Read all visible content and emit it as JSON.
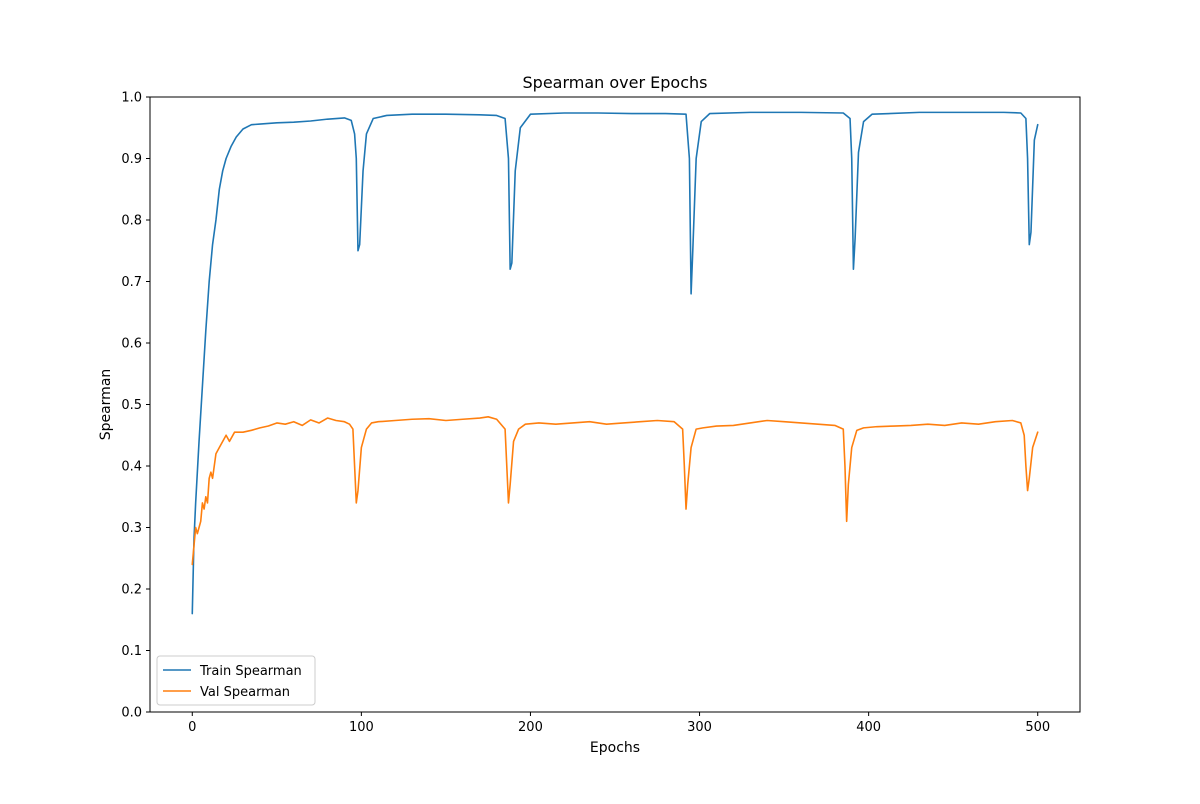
{
  "chart_data": {
    "type": "line",
    "title": "Spearman over Epochs",
    "xlabel": "Epochs",
    "ylabel": "Spearman",
    "xlim": [
      -25,
      525
    ],
    "ylim": [
      0.0,
      1.0
    ],
    "xticks": [
      0,
      100,
      200,
      300,
      400,
      500
    ],
    "yticks": [
      0.0,
      0.1,
      0.2,
      0.3,
      0.4,
      0.5,
      0.6,
      0.7,
      0.8,
      0.9,
      1.0
    ],
    "xtick_labels": [
      "0",
      "100",
      "200",
      "300",
      "400",
      "500"
    ],
    "ytick_labels": [
      "0.0",
      "0.1",
      "0.2",
      "0.3",
      "0.4",
      "0.5",
      "0.6",
      "0.7",
      "0.8",
      "0.9",
      "1.0"
    ],
    "grid": false,
    "legend_position": "lower-left",
    "series": [
      {
        "name": "Train Spearman",
        "color": "#1f77b4",
        "points": [
          [
            0,
            0.16
          ],
          [
            1,
            0.28
          ],
          [
            2,
            0.34
          ],
          [
            4,
            0.44
          ],
          [
            6,
            0.53
          ],
          [
            8,
            0.62
          ],
          [
            10,
            0.7
          ],
          [
            12,
            0.76
          ],
          [
            14,
            0.8
          ],
          [
            16,
            0.85
          ],
          [
            18,
            0.88
          ],
          [
            20,
            0.9
          ],
          [
            23,
            0.92
          ],
          [
            26,
            0.935
          ],
          [
            30,
            0.948
          ],
          [
            35,
            0.955
          ],
          [
            40,
            0.956
          ],
          [
            50,
            0.958
          ],
          [
            60,
            0.959
          ],
          [
            70,
            0.961
          ],
          [
            80,
            0.964
          ],
          [
            90,
            0.966
          ],
          [
            94,
            0.962
          ],
          [
            96,
            0.94
          ],
          [
            97,
            0.9
          ],
          [
            98,
            0.75
          ],
          [
            99,
            0.76
          ],
          [
            101,
            0.88
          ],
          [
            103,
            0.94
          ],
          [
            107,
            0.965
          ],
          [
            115,
            0.97
          ],
          [
            130,
            0.972
          ],
          [
            150,
            0.972
          ],
          [
            170,
            0.971
          ],
          [
            180,
            0.97
          ],
          [
            185,
            0.965
          ],
          [
            187,
            0.9
          ],
          [
            188,
            0.72
          ],
          [
            189,
            0.73
          ],
          [
            191,
            0.88
          ],
          [
            194,
            0.95
          ],
          [
            200,
            0.972
          ],
          [
            220,
            0.974
          ],
          [
            240,
            0.974
          ],
          [
            260,
            0.973
          ],
          [
            280,
            0.973
          ],
          [
            292,
            0.972
          ],
          [
            294,
            0.9
          ],
          [
            295,
            0.68
          ],
          [
            296,
            0.75
          ],
          [
            298,
            0.9
          ],
          [
            301,
            0.96
          ],
          [
            306,
            0.973
          ],
          [
            330,
            0.975
          ],
          [
            360,
            0.975
          ],
          [
            385,
            0.974
          ],
          [
            389,
            0.965
          ],
          [
            390,
            0.9
          ],
          [
            391,
            0.72
          ],
          [
            392,
            0.77
          ],
          [
            394,
            0.91
          ],
          [
            397,
            0.96
          ],
          [
            402,
            0.972
          ],
          [
            430,
            0.975
          ],
          [
            460,
            0.975
          ],
          [
            480,
            0.975
          ],
          [
            490,
            0.974
          ],
          [
            493,
            0.965
          ],
          [
            494,
            0.9
          ],
          [
            495,
            0.76
          ],
          [
            496,
            0.78
          ],
          [
            498,
            0.93
          ],
          [
            500,
            0.955
          ]
        ]
      },
      {
        "name": "Val Spearman",
        "color": "#ff7f0e",
        "points": [
          [
            0,
            0.24
          ],
          [
            1,
            0.27
          ],
          [
            2,
            0.3
          ],
          [
            3,
            0.29
          ],
          [
            4,
            0.3
          ],
          [
            5,
            0.31
          ],
          [
            6,
            0.34
          ],
          [
            7,
            0.33
          ],
          [
            8,
            0.35
          ],
          [
            9,
            0.34
          ],
          [
            10,
            0.38
          ],
          [
            11,
            0.39
          ],
          [
            12,
            0.38
          ],
          [
            14,
            0.42
          ],
          [
            16,
            0.43
          ],
          [
            18,
            0.44
          ],
          [
            20,
            0.45
          ],
          [
            22,
            0.44
          ],
          [
            25,
            0.455
          ],
          [
            30,
            0.455
          ],
          [
            35,
            0.458
          ],
          [
            40,
            0.462
          ],
          [
            45,
            0.465
          ],
          [
            50,
            0.47
          ],
          [
            55,
            0.468
          ],
          [
            60,
            0.472
          ],
          [
            65,
            0.466
          ],
          [
            70,
            0.475
          ],
          [
            75,
            0.47
          ],
          [
            80,
            0.478
          ],
          [
            85,
            0.474
          ],
          [
            90,
            0.472
          ],
          [
            93,
            0.468
          ],
          [
            95,
            0.46
          ],
          [
            96,
            0.4
          ],
          [
            97,
            0.34
          ],
          [
            98,
            0.36
          ],
          [
            100,
            0.43
          ],
          [
            103,
            0.46
          ],
          [
            106,
            0.47
          ],
          [
            110,
            0.472
          ],
          [
            120,
            0.474
          ],
          [
            130,
            0.476
          ],
          [
            140,
            0.477
          ],
          [
            150,
            0.474
          ],
          [
            160,
            0.476
          ],
          [
            170,
            0.478
          ],
          [
            175,
            0.48
          ],
          [
            180,
            0.476
          ],
          [
            185,
            0.46
          ],
          [
            186,
            0.4
          ],
          [
            187,
            0.34
          ],
          [
            188,
            0.37
          ],
          [
            190,
            0.44
          ],
          [
            193,
            0.46
          ],
          [
            197,
            0.468
          ],
          [
            205,
            0.47
          ],
          [
            215,
            0.468
          ],
          [
            225,
            0.47
          ],
          [
            235,
            0.472
          ],
          [
            245,
            0.468
          ],
          [
            255,
            0.47
          ],
          [
            265,
            0.472
          ],
          [
            275,
            0.474
          ],
          [
            285,
            0.472
          ],
          [
            290,
            0.46
          ],
          [
            291,
            0.4
          ],
          [
            292,
            0.33
          ],
          [
            293,
            0.37
          ],
          [
            295,
            0.43
          ],
          [
            298,
            0.46
          ],
          [
            302,
            0.462
          ],
          [
            310,
            0.465
          ],
          [
            320,
            0.466
          ],
          [
            330,
            0.47
          ],
          [
            340,
            0.474
          ],
          [
            350,
            0.472
          ],
          [
            360,
            0.47
          ],
          [
            370,
            0.468
          ],
          [
            380,
            0.466
          ],
          [
            385,
            0.46
          ],
          [
            386,
            0.4
          ],
          [
            387,
            0.31
          ],
          [
            388,
            0.37
          ],
          [
            390,
            0.43
          ],
          [
            393,
            0.458
          ],
          [
            397,
            0.462
          ],
          [
            405,
            0.464
          ],
          [
            415,
            0.465
          ],
          [
            425,
            0.466
          ],
          [
            435,
            0.468
          ],
          [
            445,
            0.466
          ],
          [
            455,
            0.47
          ],
          [
            465,
            0.468
          ],
          [
            475,
            0.472
          ],
          [
            485,
            0.474
          ],
          [
            490,
            0.47
          ],
          [
            492,
            0.45
          ],
          [
            493,
            0.4
          ],
          [
            494,
            0.36
          ],
          [
            495,
            0.38
          ],
          [
            497,
            0.43
          ],
          [
            500,
            0.455
          ]
        ]
      }
    ]
  }
}
